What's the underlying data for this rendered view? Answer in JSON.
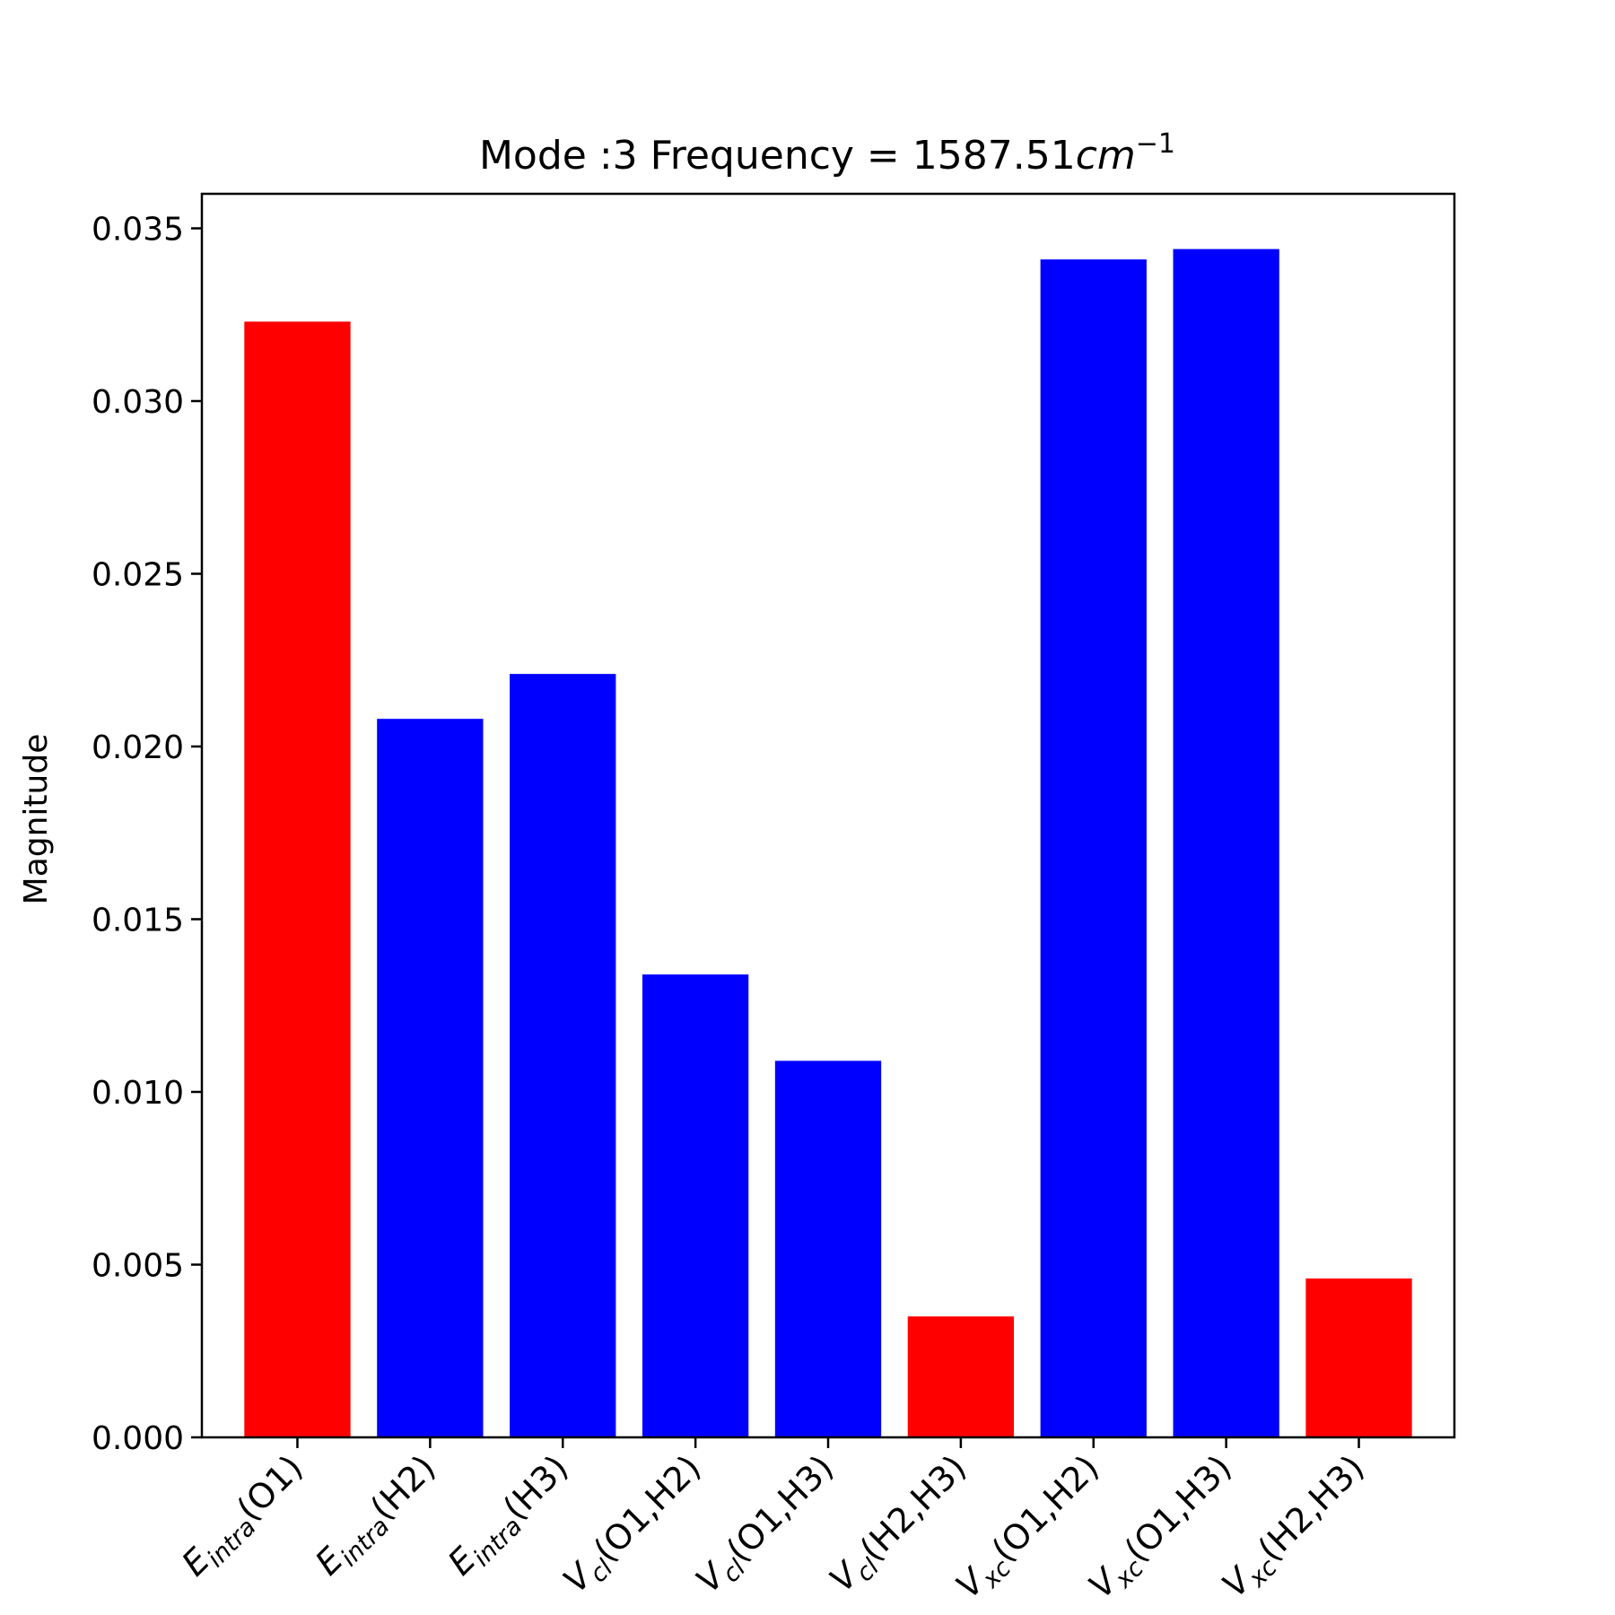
{
  "chart_data": {
    "type": "bar",
    "title": {
      "prefix": "Mode :3   Frequency = 1587.51",
      "unit_base": "cm",
      "unit_exp": "−1"
    },
    "xlabel": "",
    "ylabel": "Magnitude",
    "ylim": [
      0,
      0.036
    ],
    "yticks": [
      "0.000",
      "0.005",
      "0.010",
      "0.015",
      "0.020",
      "0.025",
      "0.030",
      "0.035"
    ],
    "grid": false,
    "categories": [
      {
        "sym": "E",
        "sub": "intra",
        "arg": "(O1)"
      },
      {
        "sym": "E",
        "sub": "intra",
        "arg": "(H2)"
      },
      {
        "sym": "E",
        "sub": "intra",
        "arg": "(H3)"
      },
      {
        "sym": "V",
        "sub": "cl",
        "arg": "(O1,H2)"
      },
      {
        "sym": "V",
        "sub": "cl",
        "arg": "(O1,H3)"
      },
      {
        "sym": "V",
        "sub": "cl",
        "arg": "(H2,H3)"
      },
      {
        "sym": "V",
        "sub": "xc",
        "arg": "(O1,H2)"
      },
      {
        "sym": "V",
        "sub": "xc",
        "arg": "(O1,H3)"
      },
      {
        "sym": "V",
        "sub": "xc",
        "arg": "(H2,H3)"
      }
    ],
    "values": [
      0.0323,
      0.0208,
      0.0221,
      0.0134,
      0.0109,
      0.0035,
      0.0341,
      0.0344,
      0.0046
    ],
    "colors": [
      "#ff0000",
      "#0000ff",
      "#0000ff",
      "#0000ff",
      "#0000ff",
      "#ff0000",
      "#0000ff",
      "#0000ff",
      "#ff0000"
    ]
  }
}
